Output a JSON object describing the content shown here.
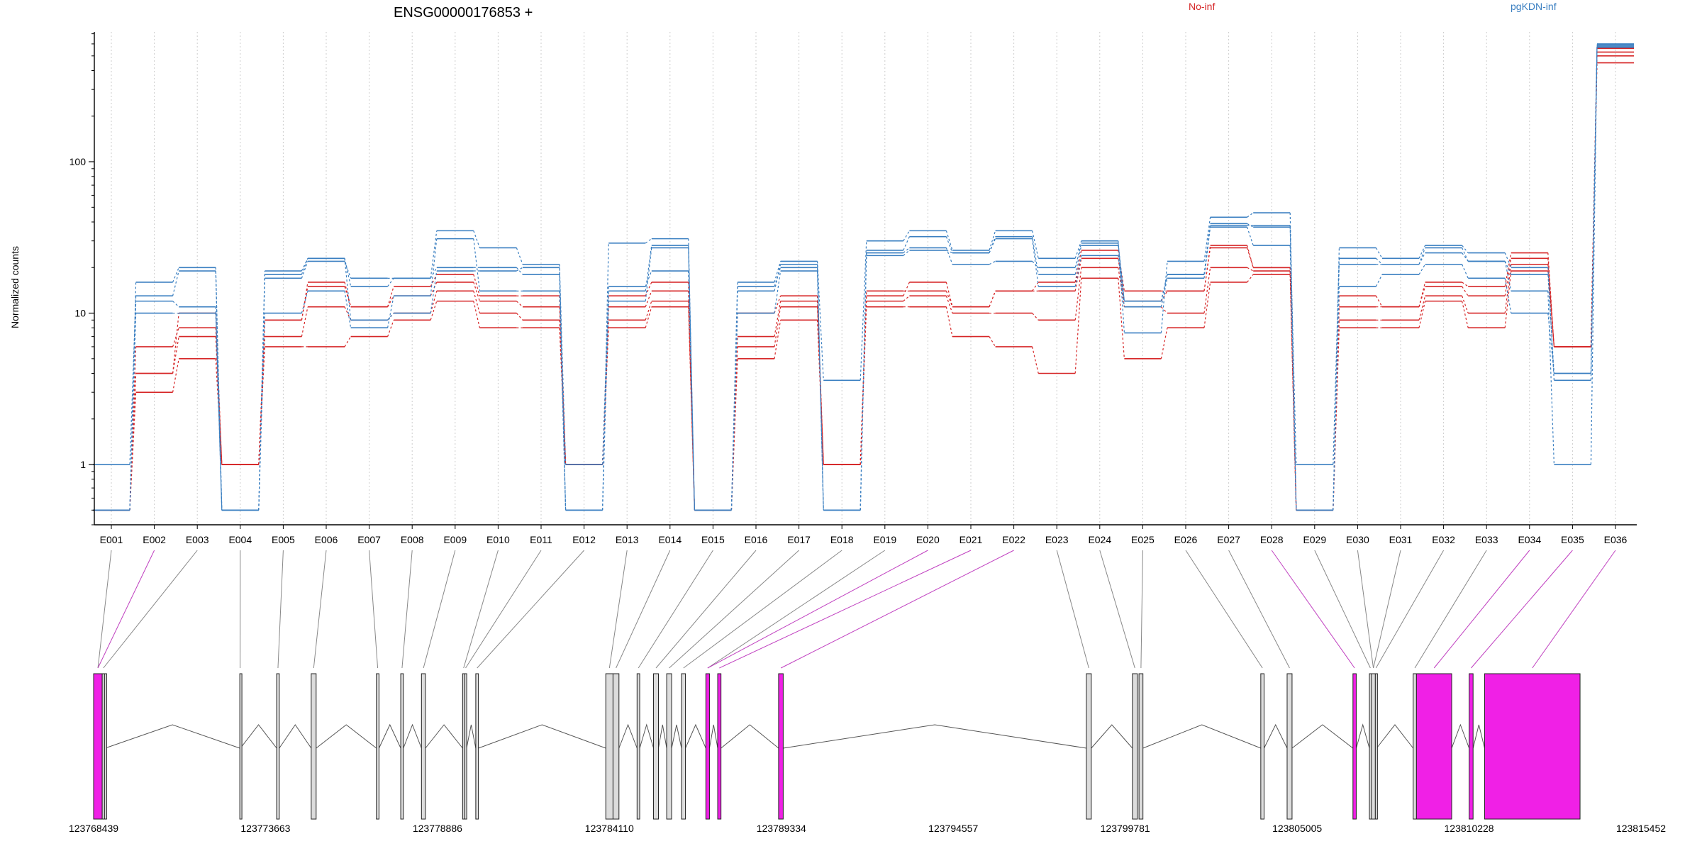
{
  "chart_data": {
    "type": "line",
    "title": "ENSG00000176853 +",
    "ylabel": "Normalized counts",
    "xlabel": "",
    "yscale": "log",
    "ylim": [
      0.4,
      720
    ],
    "yticks": [
      1,
      10,
      100
    ],
    "ytick_labels": [
      "1",
      "10",
      "100"
    ],
    "grid": "vertical-dotted",
    "legend_placement": "top-right",
    "categories": [
      "E001",
      "E002",
      "E003",
      "E004",
      "E005",
      "E006",
      "E007",
      "E008",
      "E009",
      "E010",
      "E011",
      "E012",
      "E013",
      "E014",
      "E015",
      "E016",
      "E017",
      "E018",
      "E019",
      "E020",
      "E021",
      "E022",
      "E023",
      "E024",
      "E025",
      "E026",
      "E027",
      "E028",
      "E029",
      "E030",
      "E031",
      "E032",
      "E033",
      "E034",
      "E035",
      "E036"
    ],
    "series": [
      {
        "name": "No-inf",
        "color": "#d62728",
        "samples": [
          [
            0.5,
            3.0,
            5.0,
            1.0,
            6.0,
            6.0,
            7.0,
            9.0,
            12.0,
            8.0,
            8.0,
            1.0,
            8.0,
            11.0,
            0.5,
            5.0,
            9.0,
            1.0,
            11.0,
            11.0,
            7.0,
            6.0,
            4.0,
            17.0,
            5.0,
            8.0,
            16.0,
            18.0,
            0.5,
            8.0,
            8.0,
            12.0,
            8.0,
            19.0,
            6.0,
            450.0
          ],
          [
            0.5,
            4.0,
            7.0,
            1.0,
            7.0,
            11.0,
            9.0,
            10.0,
            14.0,
            10.0,
            9.0,
            1.0,
            9.0,
            12.0,
            0.5,
            6.0,
            11.0,
            1.0,
            12.0,
            13.0,
            10.0,
            10.0,
            9.0,
            20.0,
            11.0,
            10.0,
            20.0,
            19.0,
            0.5,
            9.0,
            9.0,
            13.0,
            10.0,
            21.0,
            6.0,
            500.0
          ],
          [
            0.5,
            6.0,
            8.0,
            1.0,
            9.0,
            16.0,
            11.0,
            13.0,
            16.0,
            12.0,
            11.0,
            1.0,
            11.0,
            14.0,
            0.5,
            7.0,
            12.0,
            1.0,
            14.0,
            14.0,
            11.0,
            14.0,
            14.0,
            23.0,
            12.0,
            14.0,
            27.0,
            20.0,
            0.5,
            11.0,
            11.0,
            15.0,
            13.0,
            23.0,
            6.0,
            530.0
          ],
          [
            0.5,
            4.0,
            10.0,
            1.0,
            9.0,
            15.0,
            11.0,
            15.0,
            18.0,
            13.0,
            13.0,
            1.0,
            13.0,
            16.0,
            0.5,
            10.0,
            13.0,
            1.0,
            13.0,
            16.0,
            11.0,
            14.0,
            16.0,
            26.0,
            14.0,
            14.0,
            28.0,
            20.0,
            0.5,
            13.0,
            11.0,
            16.0,
            15.0,
            25.0,
            6.0,
            560.0
          ]
        ]
      },
      {
        "name": "pgKDN-inf",
        "color": "#3a7fc1",
        "samples": [
          [
            0.5,
            12.0,
            11.0,
            0.5,
            17.0,
            22.0,
            17.0,
            17.0,
            20.0,
            20.0,
            18.0,
            0.5,
            15.0,
            19.0,
            0.5,
            15.0,
            20.0,
            0.5,
            25.0,
            27.0,
            21.0,
            22.0,
            20.0,
            29.0,
            12.0,
            18.0,
            38.0,
            38.0,
            0.5,
            21.0,
            21.0,
            25.0,
            22.0,
            14.0,
            1.0,
            570.0
          ],
          [
            0.5,
            16.0,
            20.0,
            0.5,
            19.0,
            23.0,
            15.0,
            17.0,
            35.0,
            27.0,
            21.0,
            0.5,
            29.0,
            31.0,
            0.5,
            16.0,
            22.0,
            3.6,
            30.0,
            35.0,
            26.0,
            35.0,
            23.0,
            30.0,
            7.4,
            22.0,
            43.0,
            46.0,
            0.5,
            27.0,
            23.0,
            28.0,
            25.0,
            20.0,
            3.6,
            600.0
          ],
          [
            0.5,
            10.0,
            10.0,
            0.5,
            10.0,
            14.0,
            8.0,
            13.0,
            31.0,
            14.0,
            14.0,
            0.5,
            12.0,
            27.0,
            0.5,
            10.0,
            19.0,
            0.5,
            24.0,
            26.0,
            25.0,
            31.0,
            15.0,
            24.0,
            11.0,
            17.0,
            37.0,
            28.0,
            0.5,
            15.0,
            18.0,
            21.0,
            17.0,
            10.0,
            4.0,
            580.0
          ],
          [
            1.0,
            13.0,
            19.0,
            0.5,
            18.0,
            23.0,
            9.0,
            10.0,
            19.0,
            19.0,
            20.0,
            1.0,
            14.0,
            28.0,
            0.5,
            14.0,
            21.0,
            0.5,
            26.0,
            32.0,
            25.0,
            32.0,
            18.0,
            28.0,
            12.0,
            18.0,
            39.0,
            37.0,
            1.0,
            23.0,
            21.0,
            27.0,
            22.0,
            18.0,
            4.0,
            590.0
          ]
        ]
      }
    ],
    "gene_model": {
      "coord_start": 123768439,
      "coord_end": 123815452,
      "coord_tick_labels": [
        "123768439",
        "123773663",
        "123778886",
        "123784110",
        "123789334",
        "123794557",
        "123799781",
        "123805005",
        "123810228",
        "123815452"
      ],
      "feature_colors": {
        "exon": "#dcdcdc",
        "highlight": "#f020e6",
        "link_exon": "#888888",
        "link_highlight": "#c040c0"
      },
      "exons": [
        {
          "start": 123768439,
          "end": 123768700,
          "hl": true
        },
        {
          "start": 123768700,
          "end": 123768770,
          "hl": false
        },
        {
          "start": 123768770,
          "end": 123768790,
          "hl": false
        },
        {
          "start": 123772880,
          "end": 123772900,
          "hl": false
        },
        {
          "start": 123774000,
          "end": 123774080,
          "hl": false
        },
        {
          "start": 123775050,
          "end": 123775200,
          "hl": false
        },
        {
          "start": 123777030,
          "end": 123777110,
          "hl": false
        },
        {
          "start": 123777770,
          "end": 123777850,
          "hl": false
        },
        {
          "start": 123778400,
          "end": 123778520,
          "hl": false
        },
        {
          "start": 123779650,
          "end": 123779710,
          "hl": false
        },
        {
          "start": 123779710,
          "end": 123779770,
          "hl": false
        },
        {
          "start": 123780050,
          "end": 123780130,
          "hl": false
        },
        {
          "start": 123784000,
          "end": 123784220,
          "hl": false
        },
        {
          "start": 123784220,
          "end": 123784400,
          "hl": false
        },
        {
          "start": 123784950,
          "end": 123785030,
          "hl": false
        },
        {
          "start": 123785450,
          "end": 123785600,
          "hl": false
        },
        {
          "start": 123785850,
          "end": 123786000,
          "hl": false
        },
        {
          "start": 123786300,
          "end": 123786420,
          "hl": false
        },
        {
          "start": 123787040,
          "end": 123787150,
          "hl": true
        },
        {
          "start": 123787400,
          "end": 123787500,
          "hl": true
        },
        {
          "start": 123789250,
          "end": 123789390,
          "hl": true
        },
        {
          "start": 123798600,
          "end": 123798750,
          "hl": false
        },
        {
          "start": 123800000,
          "end": 123800150,
          "hl": false
        },
        {
          "start": 123800200,
          "end": 123800320,
          "hl": false
        },
        {
          "start": 123803900,
          "end": 123804000,
          "hl": false
        },
        {
          "start": 123804700,
          "end": 123804850,
          "hl": false
        },
        {
          "start": 123806700,
          "end": 123806800,
          "hl": true
        },
        {
          "start": 123807200,
          "end": 123807260,
          "hl": false
        },
        {
          "start": 123807260,
          "end": 123807380,
          "hl": false
        },
        {
          "start": 123807380,
          "end": 123807420,
          "hl": false
        },
        {
          "start": 123808530,
          "end": 123808630,
          "hl": false
        },
        {
          "start": 123808630,
          "end": 123809700,
          "hl": true
        },
        {
          "start": 123810230,
          "end": 123810350,
          "hl": true
        },
        {
          "start": 123810700,
          "end": 123813600,
          "hl": true
        }
      ],
      "links": [
        {
          "label": "E001",
          "exon": 0,
          "hl": false
        },
        {
          "label": "E002",
          "exon": 0,
          "hl": true
        },
        {
          "label": "E003",
          "exon": 1,
          "hl": false
        },
        {
          "label": "E004",
          "exon": 3,
          "hl": false
        },
        {
          "label": "E005",
          "exon": 4,
          "hl": false
        },
        {
          "label": "E006",
          "exon": 5,
          "hl": false
        },
        {
          "label": "E007",
          "exon": 6,
          "hl": false
        },
        {
          "label": "E008",
          "exon": 7,
          "hl": false
        },
        {
          "label": "E009",
          "exon": 8,
          "hl": false
        },
        {
          "label": "E010",
          "exon": 9,
          "hl": false
        },
        {
          "label": "E011",
          "exon": 10,
          "hl": false
        },
        {
          "label": "E012",
          "exon": 11,
          "hl": false
        },
        {
          "label": "E013",
          "exon": 12,
          "hl": false
        },
        {
          "label": "E014",
          "exon": 13,
          "hl": false
        },
        {
          "label": "E015",
          "exon": 14,
          "hl": false
        },
        {
          "label": "E016",
          "exon": 15,
          "hl": false
        },
        {
          "label": "E017",
          "exon": 16,
          "hl": false
        },
        {
          "label": "E018",
          "exon": 17,
          "hl": false
        },
        {
          "label": "E019",
          "exon": 18,
          "hl": false
        },
        {
          "label": "E020",
          "exon": 18,
          "hl": true
        },
        {
          "label": "E021",
          "exon": 19,
          "hl": true
        },
        {
          "label": "E022",
          "exon": 20,
          "hl": true
        },
        {
          "label": "E023",
          "exon": 21,
          "hl": false
        },
        {
          "label": "E024",
          "exon": 22,
          "hl": false
        },
        {
          "label": "E025",
          "exon": 23,
          "hl": false
        },
        {
          "label": "E026",
          "exon": 24,
          "hl": false
        },
        {
          "label": "E027",
          "exon": 25,
          "hl": false
        },
        {
          "label": "E028",
          "exon": 26,
          "hl": true
        },
        {
          "label": "E029",
          "exon": 27,
          "hl": false
        },
        {
          "label": "E030",
          "exon": 28,
          "hl": false
        },
        {
          "label": "E031",
          "exon": 28,
          "hl": false
        },
        {
          "label": "E032",
          "exon": 29,
          "hl": false
        },
        {
          "label": "E033",
          "exon": 30,
          "hl": false
        },
        {
          "label": "E034",
          "exon": 31,
          "hl": true
        },
        {
          "label": "E035",
          "exon": 32,
          "hl": true
        },
        {
          "label": "E036",
          "exon": 33,
          "hl": true
        }
      ]
    }
  }
}
